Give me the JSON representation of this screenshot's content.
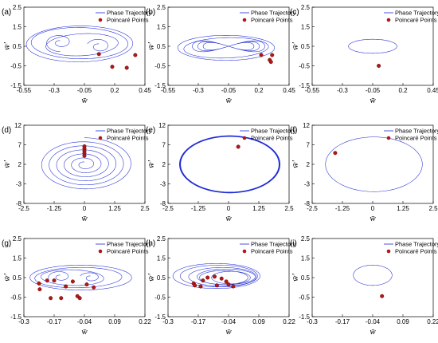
{
  "colors": {
    "trajectory": "#1f2bd6",
    "point": "#b01818"
  },
  "legend": {
    "trajectory": "Phase Trajectory",
    "points": "Poincaré Points"
  },
  "chart_data": [
    {
      "label": "(a)",
      "type": "line",
      "xlabel": "w̄",
      "ylabel": "w̄'",
      "xlim": [
        -0.55,
        0.45
      ],
      "ylim": [
        -1.5,
        2.5
      ],
      "xticks": [
        "-0.55",
        "-0.3",
        "-0.05",
        "0.2",
        "0.45"
      ],
      "yticks": [
        "2.5",
        "1.5",
        "0.5",
        "-0.5",
        "-1.5"
      ],
      "poincare_points": [
        [
          0.07,
          0.1
        ],
        [
          0.18,
          -0.55
        ],
        [
          0.3,
          -0.6
        ],
        [
          0.37,
          0.05
        ]
      ]
    },
    {
      "label": "(b)",
      "type": "line",
      "xlabel": "w̄",
      "ylabel": "w̄'",
      "xlim": [
        -0.55,
        0.45
      ],
      "ylim": [
        -1.5,
        2.5
      ],
      "xticks": [
        "-0.55",
        "-0.3",
        "-0.05",
        "0.2",
        "0.45"
      ],
      "yticks": [
        "2.5",
        "1.5",
        "0.5",
        "-0.5",
        "-1.5"
      ],
      "poincare_points": [
        [
          0.22,
          0.05
        ],
        [
          0.29,
          -0.2
        ],
        [
          0.31,
          0.05
        ],
        [
          0.3,
          -0.3
        ]
      ]
    },
    {
      "label": "(c)",
      "type": "line",
      "xlabel": "w̄",
      "ylabel": "w̄'",
      "xlim": [
        -0.55,
        0.45
      ],
      "ylim": [
        -1.5,
        2.5
      ],
      "xticks": [
        "-0.55",
        "-0.3",
        "-0.05",
        "0.2",
        "0.45"
      ],
      "yticks": [
        "2.5",
        "1.5",
        "0.5",
        "-0.5",
        "-1.5"
      ],
      "poincare_points": [
        [
          0.0,
          -0.5
        ]
      ]
    },
    {
      "label": "(d)",
      "type": "line",
      "xlabel": "w̄",
      "ylabel": "w̄'",
      "xlim": [
        -2.5,
        2.5
      ],
      "ylim": [
        -8,
        12
      ],
      "xticks": [
        "-2.5",
        "-1.25",
        "0",
        "1.25",
        "2.5"
      ],
      "yticks": [
        "12",
        "7",
        "2",
        "-3",
        "-8"
      ],
      "poincare_points": [
        [
          0,
          6.6
        ],
        [
          0,
          6.0
        ],
        [
          0,
          5.4
        ],
        [
          0,
          4.8
        ],
        [
          0,
          4.2
        ]
      ]
    },
    {
      "label": "(e)",
      "type": "line",
      "xlabel": "w̄",
      "ylabel": "w̄'",
      "xlim": [
        -2.5,
        2.5
      ],
      "ylim": [
        -8,
        12
      ],
      "xticks": [
        "-2.5",
        "-1.25",
        "0",
        "1.25",
        "2.5"
      ],
      "yticks": [
        "12",
        "7",
        "2",
        "-3",
        "-8"
      ],
      "poincare_points": [
        [
          0.4,
          6.5
        ]
      ]
    },
    {
      "label": "(f)",
      "type": "line",
      "xlabel": "w̄",
      "ylabel": "w̄'",
      "xlim": [
        -2.5,
        2.5
      ],
      "ylim": [
        -8,
        12
      ],
      "xticks": [
        "-2.5",
        "-1.25",
        "0",
        "1.25",
        "2.5"
      ],
      "yticks": [
        "12",
        "7",
        "2",
        "-3",
        "-8"
      ],
      "poincare_points": [
        [
          -1.55,
          4.9
        ]
      ]
    },
    {
      "label": "(g)",
      "type": "line",
      "xlabel": "w̄",
      "ylabel": "w̄'",
      "xlim": [
        -0.3,
        0.22
      ],
      "ylim": [
        -1.5,
        2.5
      ],
      "xticks": [
        "-0.3",
        "-0.17",
        "-0.04",
        "0.09",
        "0.22"
      ],
      "yticks": [
        "2.5",
        "1.5",
        "0.5",
        "-0.5",
        "-1.5"
      ],
      "poincare_points": [
        [
          -0.235,
          0.2
        ],
        [
          -0.232,
          -0.1
        ],
        [
          -0.2,
          0.35
        ],
        [
          -0.17,
          0.35
        ],
        [
          -0.185,
          -0.55
        ],
        [
          -0.14,
          -0.55
        ],
        [
          -0.09,
          0.3
        ],
        [
          -0.07,
          -0.45
        ],
        [
          -0.06,
          -0.55
        ],
        [
          -0.03,
          0.15
        ],
        [
          0.0,
          0.0
        ],
        [
          -0.12,
          0.05
        ]
      ]
    },
    {
      "label": "(h)",
      "type": "line",
      "xlabel": "w̄",
      "ylabel": "w̄'",
      "xlim": [
        -0.3,
        0.22
      ],
      "ylim": [
        -1.5,
        2.5
      ],
      "xticks": [
        "-0.3",
        "-0.17",
        "-0.04",
        "0.09",
        "0.22"
      ],
      "yticks": [
        "2.5",
        "1.5",
        "0.5",
        "-0.5",
        "-1.5"
      ],
      "poincare_points": [
        [
          -0.19,
          0.2
        ],
        [
          -0.185,
          0.1
        ],
        [
          -0.15,
          0.35
        ],
        [
          -0.13,
          0.5
        ],
        [
          -0.1,
          0.55
        ],
        [
          -0.07,
          0.45
        ],
        [
          -0.05,
          0.3
        ],
        [
          -0.04,
          0.15
        ],
        [
          -0.16,
          0.05
        ],
        [
          -0.09,
          0.1
        ],
        [
          -0.02,
          0.05
        ]
      ]
    },
    {
      "label": "(i)",
      "type": "line",
      "xlabel": "w̄",
      "ylabel": "w̄'",
      "xlim": [
        -0.3,
        0.22
      ],
      "ylim": [
        -1.5,
        2.5
      ],
      "xticks": [
        "-0.3",
        "-0.17",
        "-0.04",
        "0.09",
        "0.22"
      ],
      "yticks": [
        "2.5",
        "1.5",
        "0.5",
        "-0.5",
        "-1.5"
      ],
      "poincare_points": [
        [
          0.0,
          -0.45
        ]
      ]
    }
  ]
}
